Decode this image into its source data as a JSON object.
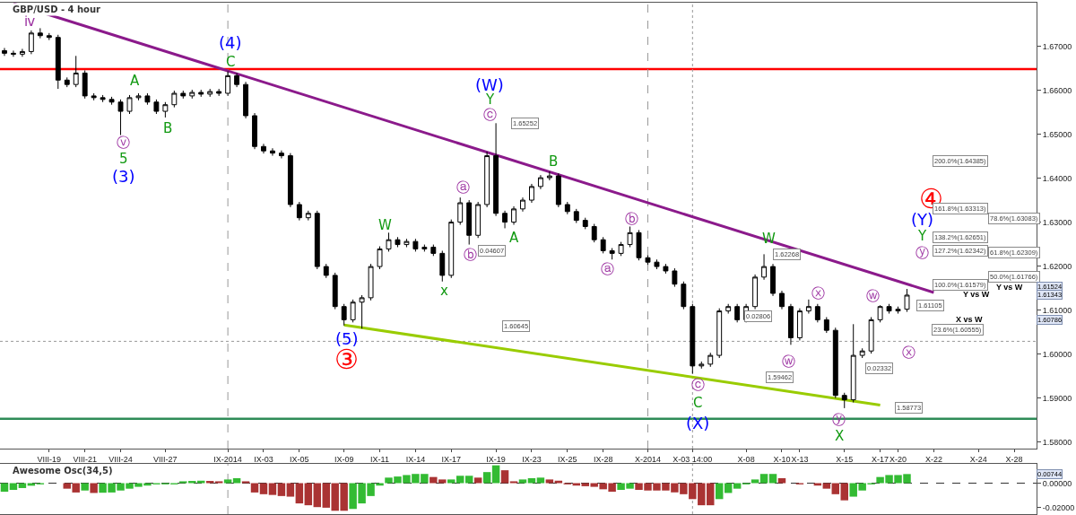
{
  "chart_data": [
    {
      "type": "candlestick",
      "title": "GBP/USD - 4 hour",
      "categories": [
        null,
        null,
        null,
        null,
        null,
        "VIII-19",
        null,
        null,
        null,
        "VIII-21",
        null,
        null,
        null,
        "VIII-24",
        null,
        null,
        null,
        null,
        "VIII-27",
        null,
        null,
        null,
        null,
        null,
        null,
        "IX-2014",
        null,
        null,
        null,
        "IX-03",
        null,
        null,
        null,
        "IX-05",
        null,
        null,
        null,
        null,
        "IX-09",
        null,
        null,
        null,
        "IX-11",
        null,
        null,
        null,
        "IX-14",
        null,
        null,
        null,
        "IX-17",
        null,
        null,
        null,
        null,
        "IX-19",
        null,
        null,
        null,
        "IX-23",
        null,
        null,
        null,
        "IX-25",
        null,
        null,
        null,
        "IX-28",
        null,
        null,
        null,
        null,
        "X-2014",
        null,
        null,
        null,
        null,
        "X-03 14:00",
        null,
        null,
        null,
        null,
        null,
        "X-08",
        null,
        null,
        null,
        "X-10",
        null,
        "X-13",
        null,
        null,
        null,
        null,
        "X-15",
        null,
        null,
        null,
        "X-17",
        null,
        "X-20",
        null,
        null,
        null,
        "X-22",
        null,
        null,
        null,
        null,
        "X-24",
        null,
        null,
        null,
        "X-28",
        null,
        null
      ],
      "ohlc": [
        [
          1.669,
          1.6696,
          1.6678,
          1.6684
        ],
        [
          1.6684,
          1.669,
          1.6676,
          1.6682
        ],
        [
          1.6682,
          1.6694,
          1.6676,
          1.6688
        ],
        [
          1.6688,
          1.6736,
          1.6682,
          1.673
        ],
        [
          1.673,
          1.6741,
          1.6718,
          1.6724
        ],
        [
          1.6724,
          1.673,
          1.6714,
          1.672
        ],
        [
          1.672,
          1.6726,
          1.6603,
          1.6623
        ],
        [
          1.6623,
          1.6629,
          1.6607,
          1.6613
        ],
        [
          1.6613,
          1.6678,
          1.6607,
          1.6639
        ],
        [
          1.6639,
          1.6645,
          1.6581,
          1.6587
        ],
        [
          1.6587,
          1.6593,
          1.6577,
          1.6583
        ],
        [
          1.6583,
          1.6589,
          1.6573,
          1.6579
        ],
        [
          1.6579,
          1.6585,
          1.6567,
          1.6573
        ],
        [
          1.6573,
          1.6579,
          1.6498,
          1.6552
        ],
        [
          1.6552,
          1.6589,
          1.6546,
          1.6583
        ],
        [
          1.6583,
          1.6593,
          1.6577,
          1.6587
        ],
        [
          1.6587,
          1.6593,
          1.6567,
          1.6573
        ],
        [
          1.6573,
          1.6579,
          1.6546,
          1.6552
        ],
        [
          1.6552,
          1.6573,
          1.6538,
          1.6567
        ],
        [
          1.6567,
          1.6599,
          1.6561,
          1.6593
        ],
        [
          1.6593,
          1.6599,
          1.6581,
          1.6587
        ],
        [
          1.6587,
          1.6601,
          1.6581,
          1.6595
        ],
        [
          1.6595,
          1.6601,
          1.6585,
          1.6591
        ],
        [
          1.6591,
          1.6603,
          1.6585,
          1.6597
        ],
        [
          1.6597,
          1.6603,
          1.6587,
          1.6593
        ],
        [
          1.6593,
          1.6643,
          1.6587,
          1.6633
        ],
        [
          1.6633,
          1.6639,
          1.6607,
          1.6613
        ],
        [
          1.6613,
          1.6619,
          1.6536,
          1.6542
        ],
        [
          1.6542,
          1.6548,
          1.6466,
          1.6472
        ],
        [
          1.6472,
          1.6478,
          1.6456,
          1.6462
        ],
        [
          1.6462,
          1.6468,
          1.6451,
          1.6457
        ],
        [
          1.6457,
          1.6463,
          1.6445,
          1.6451
        ],
        [
          1.6451,
          1.6457,
          1.6334,
          1.634
        ],
        [
          1.634,
          1.6346,
          1.6304,
          1.631
        ],
        [
          1.631,
          1.6326,
          1.6304,
          1.632
        ],
        [
          1.632,
          1.6326,
          1.6193,
          1.6199
        ],
        [
          1.6199,
          1.6205,
          1.6173,
          1.6179
        ],
        [
          1.6179,
          1.6185,
          1.6102,
          1.6108
        ],
        [
          1.6108,
          1.6114,
          1.6065,
          1.6078
        ],
        [
          1.6078,
          1.6124,
          1.6072,
          1.6118
        ],
        [
          1.6118,
          1.6134,
          1.6058,
          1.6128
        ],
        [
          1.6128,
          1.6205,
          1.6122,
          1.6199
        ],
        [
          1.6199,
          1.6245,
          1.6193,
          1.6239
        ],
        [
          1.6239,
          1.6276,
          1.6233,
          1.626
        ],
        [
          1.626,
          1.6266,
          1.6243,
          1.6249
        ],
        [
          1.6249,
          1.6262,
          1.6243,
          1.6256
        ],
        [
          1.6256,
          1.6262,
          1.6233,
          1.6239
        ],
        [
          1.6239,
          1.6249,
          1.6233,
          1.6243
        ],
        [
          1.6243,
          1.6249,
          1.6223,
          1.6229
        ],
        [
          1.6229,
          1.6235,
          1.6165,
          1.6179
        ],
        [
          1.6179,
          1.6306,
          1.6173,
          1.63
        ],
        [
          1.63,
          1.6356,
          1.6294,
          1.6344
        ],
        [
          1.6344,
          1.635,
          1.6249,
          1.627
        ],
        [
          1.627,
          1.6346,
          1.6264,
          1.634
        ],
        [
          1.634,
          1.646,
          1.6334,
          1.6451
        ],
        [
          1.6451,
          1.6525,
          1.6314,
          1.632
        ],
        [
          1.632,
          1.6326,
          1.6286,
          1.63
        ],
        [
          1.63,
          1.6336,
          1.6294,
          1.633
        ],
        [
          1.633,
          1.6356,
          1.6324,
          1.635
        ],
        [
          1.635,
          1.6387,
          1.6344,
          1.6381
        ],
        [
          1.6381,
          1.6407,
          1.6375,
          1.6401
        ],
        [
          1.6401,
          1.6415,
          1.6395,
          1.6405
        ],
        [
          1.6405,
          1.6411,
          1.6334,
          1.634
        ],
        [
          1.634,
          1.6346,
          1.6318,
          1.6324
        ],
        [
          1.6324,
          1.633,
          1.6298,
          1.6304
        ],
        [
          1.6304,
          1.631,
          1.6284,
          1.629
        ],
        [
          1.629,
          1.6296,
          1.6254,
          1.626
        ],
        [
          1.626,
          1.6266,
          1.6229,
          1.6235
        ],
        [
          1.6235,
          1.6241,
          1.6215,
          1.6229
        ],
        [
          1.6229,
          1.6255,
          1.6223,
          1.6249
        ],
        [
          1.6249,
          1.629,
          1.6243,
          1.6276
        ],
        [
          1.6276,
          1.6282,
          1.6213,
          1.6219
        ],
        [
          1.6219,
          1.6225,
          1.6203,
          1.6209
        ],
        [
          1.6209,
          1.6215,
          1.6193,
          1.6199
        ],
        [
          1.6199,
          1.6205,
          1.6183,
          1.6189
        ],
        [
          1.6189,
          1.6195,
          1.6153,
          1.6159
        ],
        [
          1.6159,
          1.6165,
          1.6102,
          1.6108
        ],
        [
          1.6108,
          1.6114,
          1.5955,
          1.5973
        ],
        [
          1.5973,
          1.5983,
          1.5967,
          1.5977
        ],
        [
          1.5977,
          1.6003,
          1.5971,
          1.5997
        ],
        [
          1.5997,
          1.6104,
          1.5991,
          1.6098
        ],
        [
          1.6098,
          1.6114,
          1.6092,
          1.6108
        ],
        [
          1.6108,
          1.6114,
          1.6072,
          1.6078
        ],
        [
          1.6078,
          1.6114,
          1.6072,
          1.6108
        ],
        [
          1.6108,
          1.6181,
          1.6102,
          1.6175
        ],
        [
          1.6175,
          1.6227,
          1.6169,
          1.6199
        ],
        [
          1.6199,
          1.6205,
          1.6132,
          1.6138
        ],
        [
          1.6138,
          1.6144,
          1.6102,
          1.6108
        ],
        [
          1.6108,
          1.6114,
          1.6021,
          1.6037
        ],
        [
          1.6037,
          1.6104,
          1.6031,
          1.6098
        ],
        [
          1.6098,
          1.6124,
          1.6092,
          1.6108
        ],
        [
          1.6108,
          1.6114,
          1.6072,
          1.6078
        ],
        [
          1.6078,
          1.6084,
          1.6048,
          1.6054
        ],
        [
          1.6054,
          1.606,
          1.59,
          1.5906
        ],
        [
          1.5906,
          1.5912,
          1.5877,
          1.5896
        ],
        [
          1.5896,
          1.6068,
          1.589,
          1.5997
        ],
        [
          1.5997,
          1.6013,
          1.5991,
          1.6007
        ],
        [
          1.6007,
          1.6084,
          1.6001,
          1.6078
        ],
        [
          1.6078,
          1.6111,
          1.6072,
          1.6108
        ],
        [
          1.6108,
          1.6114,
          1.6092,
          1.6098
        ],
        [
          1.6098,
          1.6108,
          1.6092,
          1.6102
        ],
        [
          1.6102,
          1.6148,
          1.6096,
          1.6134
        ],
        null,
        null,
        null,
        null,
        null,
        null,
        null,
        null,
        null,
        null,
        null,
        null,
        null,
        null
      ],
      "series": [
        {
          "type": "line",
          "color": "#8b1a8b",
          "values": [
            null,
            1.6797,
            null,
            null,
            null,
            null,
            null,
            null,
            null,
            null,
            null,
            null,
            null,
            null,
            null,
            null,
            null,
            null,
            null,
            null,
            null,
            null,
            null,
            null,
            null,
            null,
            null,
            null,
            null,
            null,
            null,
            null,
            null,
            null,
            null,
            null,
            null,
            null,
            null,
            null,
            null,
            null,
            null,
            null,
            null,
            null,
            null,
            null,
            null,
            null,
            null,
            null,
            null,
            null,
            null,
            null,
            null,
            null,
            null,
            null,
            null,
            null,
            null,
            null,
            null,
            null,
            null,
            null,
            null,
            null,
            null,
            null,
            null,
            null,
            null,
            null,
            null,
            null,
            null,
            null,
            null,
            null,
            null,
            null,
            null,
            null,
            null,
            null,
            null,
            null,
            null,
            null,
            null,
            null,
            null,
            null,
            null,
            null,
            null,
            null,
            null,
            null,
            null,
            null,
            1.614,
            null,
            null,
            null,
            null,
            null,
            null,
            null,
            null,
            null,
            null,
            null
          ]
        },
        {
          "type": "line",
          "color": "#99cc00",
          "values": [
            null,
            null,
            null,
            null,
            null,
            null,
            null,
            null,
            null,
            null,
            null,
            null,
            null,
            null,
            null,
            null,
            null,
            null,
            null,
            null,
            null,
            null,
            null,
            null,
            null,
            null,
            null,
            null,
            null,
            null,
            null,
            null,
            null,
            null,
            null,
            null,
            null,
            null,
            1.6066,
            null,
            null,
            null,
            null,
            null,
            null,
            null,
            null,
            null,
            null,
            null,
            null,
            null,
            null,
            null,
            null,
            null,
            null,
            null,
            null,
            null,
            null,
            null,
            null,
            null,
            null,
            null,
            null,
            null,
            null,
            null,
            null,
            null,
            null,
            null,
            null,
            null,
            null,
            null,
            null,
            null,
            null,
            null,
            null,
            null,
            null,
            null,
            null,
            null,
            null,
            null,
            null,
            null,
            null,
            null,
            null,
            null,
            null,
            null,
            1.5884,
            null,
            null,
            null,
            null,
            null,
            null,
            null,
            null,
            null,
            null,
            null,
            null,
            null,
            null,
            null,
            null,
            null
          ]
        }
      ],
      "ylim": [
        1.5785,
        1.6799
      ],
      "yticks": [
        {
          "value": 1.58,
          "label": "1.58000"
        },
        {
          "value": 1.59,
          "label": "1.59000"
        },
        {
          "value": 1.6,
          "label": "1.60000"
        },
        {
          "value": 1.61,
          "label": "1.61000"
        },
        {
          "value": 1.62,
          "label": "1.62000"
        },
        {
          "value": 1.63,
          "label": "1.63000"
        },
        {
          "value": 1.64,
          "label": "1.64000"
        },
        {
          "value": 1.65,
          "label": "1.65000"
        },
        {
          "value": 1.66,
          "label": "1.66000"
        },
        {
          "value": 1.67,
          "label": "1.67000"
        }
      ],
      "ref_lines": [
        {
          "axis": "y",
          "value": 1.6648,
          "label": null,
          "color": "#ff0000",
          "line_style": "solid"
        },
        {
          "axis": "y",
          "value": 1.5853,
          "label": null,
          "color": "#2e8b57",
          "line_style": "solid"
        },
        {
          "axis": "y",
          "value": 1.6029,
          "label": null,
          "color": "#999999",
          "line_style": "dotted"
        },
        {
          "axis": "x",
          "value": "IX-2014",
          "label": null,
          "color": "#999999",
          "line_style": "dashed"
        },
        {
          "axis": "x",
          "value": "X-2014",
          "label": null,
          "color": "#999999",
          "line_style": "dashed"
        },
        {
          "axis": "x",
          "value": "X-03 14:00",
          "label": null,
          "color": "#999999",
          "line_style": "dotted"
        }
      ],
      "annotations": [
        "ⅳ",
        "ⓥ",
        "5",
        "(3)",
        "A",
        "B",
        "(4)",
        "C",
        "(5)",
        "③",
        "W",
        "x",
        "ⓐ",
        "ⓑ",
        "(W)",
        "Y",
        "ⓒ",
        "A",
        "B",
        "ⓐ",
        "ⓑ",
        "ⓒ",
        "C",
        "(X)",
        "W",
        "ⓦ",
        "ⓧ",
        "ⓨ",
        "X",
        "ⓦ",
        "ⓧ",
        "④",
        "(Y)",
        "Y",
        "ⓨ",
        "Y vs W",
        "Y vs W",
        "X vs W",
        {
          "text": "1.65252",
          "y": 1.65252
        },
        "0.04607",
        "0.02806",
        "0.02332",
        {
          "text": "1.60645",
          "y": 1.60645
        },
        {
          "text": "1.59462",
          "y": 1.59462
        },
        {
          "text": "1.62268",
          "y": 1.62268
        },
        {
          "text": "1.58773",
          "y": 1.58773
        },
        {
          "text": "1.61105",
          "y": 1.61105
        },
        "200.0%(1.64385)",
        "161.8%(1.63313)",
        "78.6%(1.63083)",
        "138.2%(1.62651)",
        "127.2%(1.62342)",
        "61.8%(1.62309)",
        "50.0%(1.61766)",
        "100.0%(1.61579)",
        "23.6%(1.60555)",
        {
          "text": "1.61524",
          "y": 1.61524
        },
        {
          "text": "1.61343",
          "y": 1.61343
        },
        {
          "text": "1.60786",
          "y": 1.60786
        }
      ]
    },
    {
      "type": "bar",
      "title": "Awesome Osc(34,5)",
      "categories": [
        null,
        null,
        null,
        null,
        null,
        "VIII-19",
        null,
        null,
        null,
        "VIII-21",
        null,
        null,
        null,
        "VIII-24",
        null,
        null,
        null,
        null,
        "VIII-27",
        null,
        null,
        null,
        null,
        null,
        null,
        "IX-2014",
        null,
        null,
        null,
        "IX-03",
        null,
        null,
        null,
        "IX-05",
        null,
        null,
        null,
        null,
        "IX-09",
        null,
        null,
        null,
        "IX-11",
        null,
        null,
        null,
        "IX-14",
        null,
        null,
        null,
        "IX-17",
        null,
        null,
        null,
        null,
        "IX-19",
        null,
        null,
        null,
        "IX-23",
        null,
        null,
        null,
        "IX-25",
        null,
        null,
        null,
        "IX-28",
        null,
        null,
        null,
        null,
        "X-2014",
        null,
        null,
        null,
        null,
        "X-03 14:00",
        null,
        null,
        null,
        null,
        null,
        "X-08",
        null,
        null,
        null,
        "X-10",
        null,
        "X-13",
        null,
        null,
        null,
        null,
        "X-15",
        null,
        null,
        null,
        "X-17",
        null,
        "X-20",
        null,
        null,
        null,
        "X-22",
        null,
        null,
        null,
        null,
        "X-24",
        null,
        null,
        null,
        "X-28",
        null,
        null
      ],
      "values": [
        -0.007,
        -0.0055,
        -0.004,
        -0.0021,
        -0.001,
        0.0,
        0.0,
        -0.0045,
        -0.0076,
        -0.006,
        -0.008,
        -0.0078,
        -0.0076,
        -0.006,
        -0.0045,
        -0.003,
        -0.002,
        -0.001,
        -0.001,
        -0.001,
        0.0015,
        0.0018,
        0.002,
        0.0018,
        0.0015,
        0.003,
        0.004,
        0.0015,
        -0.0076,
        -0.009,
        -0.0096,
        -0.0105,
        -0.011,
        -0.0165,
        -0.018,
        -0.0195,
        -0.02,
        -0.0225,
        -0.0225,
        -0.021,
        -0.0165,
        -0.0105,
        -0.002,
        0.0045,
        0.0054,
        0.0066,
        0.0075,
        0.0075,
        0.005,
        0.003,
        0.003,
        0.006,
        0.006,
        0.0045,
        0.009,
        0.0145,
        0.0105,
        0.0015,
        0.003,
        0.004,
        0.0045,
        0.003,
        0.002,
        -0.001,
        -0.002,
        -0.0025,
        -0.003,
        -0.005,
        -0.007,
        -0.0055,
        -0.0045,
        -0.0055,
        -0.006,
        -0.006,
        -0.006,
        -0.0075,
        -0.009,
        -0.013,
        -0.018,
        -0.018,
        -0.013,
        -0.008,
        -0.0045,
        -0.001,
        0.003,
        0.0075,
        0.0075,
        0.004,
        0.0,
        -0.001,
        0.0,
        -0.002,
        -0.0045,
        -0.009,
        -0.014,
        -0.011,
        -0.006,
        -0.001,
        0.005,
        0.0066,
        0.0066,
        0.0074,
        null,
        null,
        null,
        null,
        null,
        null,
        null,
        null,
        null,
        null,
        null,
        null,
        null,
        null
      ],
      "colors": [
        "#33bb33",
        "#33bb33",
        "#33bb33",
        "#33bb33",
        "#33bb33",
        "#33bb33",
        "#33bb33",
        "#aa3333",
        "#aa3333",
        "#33bb33",
        "#aa3333",
        "#33bb33",
        "#33bb33",
        "#33bb33",
        "#33bb33",
        "#33bb33",
        "#33bb33",
        "#33bb33",
        "#33bb33",
        "#33bb33",
        "#33bb33",
        "#33bb33",
        "#33bb33",
        "#aa3333",
        "#aa3333",
        "#33bb33",
        "#33bb33",
        "#aa3333",
        "#aa3333",
        "#aa3333",
        "#aa3333",
        "#aa3333",
        "#aa3333",
        "#aa3333",
        "#aa3333",
        "#aa3333",
        "#aa3333",
        "#aa3333",
        "#aa3333",
        "#33bb33",
        "#33bb33",
        "#33bb33",
        "#33bb33",
        "#33bb33",
        "#33bb33",
        "#33bb33",
        "#33bb33",
        "#33bb33",
        "#aa3333",
        "#aa3333",
        "#33bb33",
        "#33bb33",
        "#33bb33",
        "#aa3333",
        "#33bb33",
        "#33bb33",
        "#aa3333",
        "#aa3333",
        "#33bb33",
        "#33bb33",
        "#33bb33",
        "#aa3333",
        "#aa3333",
        "#aa3333",
        "#aa3333",
        "#aa3333",
        "#aa3333",
        "#aa3333",
        "#aa3333",
        "#33bb33",
        "#33bb33",
        "#aa3333",
        "#aa3333",
        "#aa3333",
        "#aa3333",
        "#aa3333",
        "#aa3333",
        "#aa3333",
        "#aa3333",
        "#aa3333",
        "#33bb33",
        "#33bb33",
        "#33bb33",
        "#33bb33",
        "#33bb33",
        "#33bb33",
        "#33bb33",
        "#aa3333",
        "#aa3333",
        "#aa3333",
        "#33bb33",
        "#aa3333",
        "#aa3333",
        "#aa3333",
        "#aa3333",
        "#33bb33",
        "#33bb33",
        "#33bb33",
        "#33bb33",
        "#33bb33",
        "#33bb33",
        "#33bb33",
        null,
        null,
        null,
        null,
        null,
        null,
        null,
        null,
        null,
        null,
        null,
        null,
        null,
        null
      ],
      "ylim": [
        -0.0252,
        0.0157
      ],
      "yticks": [
        {
          "value": 0,
          "label": "0.00000"
        },
        {
          "value": -0.02,
          "label": "-0.02000"
        }
      ],
      "tick_labels": "y",
      "ref_lines": [
        {
          "axis": "y",
          "value": 0,
          "label": null,
          "color": "#333333",
          "line_style": "dashed"
        },
        {
          "axis": "x",
          "value": "IX-2014",
          "label": null,
          "color": "#999999",
          "line_style": "dashed"
        },
        {
          "axis": "x",
          "value": "X-03 14:00",
          "label": null,
          "color": "#999999",
          "line_style": "dotted"
        }
      ],
      "annotations": [
        {
          "text": "0.00744",
          "y": 0.00744
        }
      ]
    }
  ]
}
